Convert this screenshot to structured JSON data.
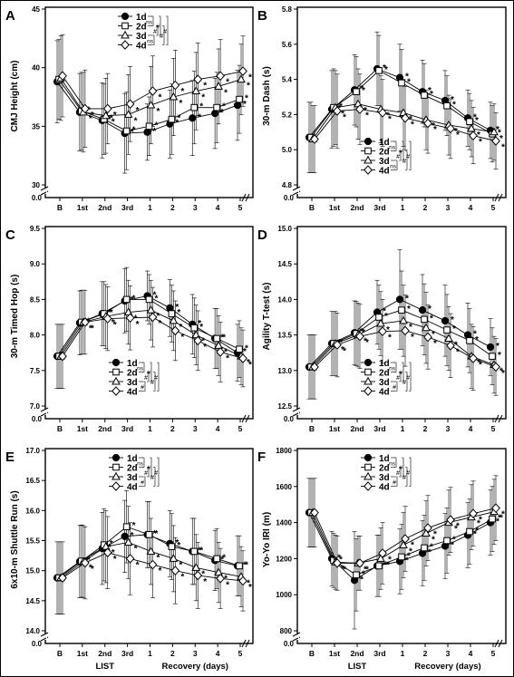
{
  "figure": {
    "x_group_left": "LIST",
    "x_group_right": "Recovery (days)",
    "series_styles": [
      {
        "name": "1d",
        "marker": "circle",
        "fill": "#000000"
      },
      {
        "name": "2d",
        "marker": "square",
        "fill": "#ffffff"
      },
      {
        "name": "3d",
        "marker": "triangle",
        "fill": "#ffffff"
      },
      {
        "name": "4d",
        "marker": "diamond",
        "fill": "#ffffff"
      }
    ],
    "colors": {
      "line": "#000000",
      "background": "#ffffff"
    }
  },
  "chart_data": [
    {
      "panel": "A",
      "type": "line",
      "ylabel": "CMJ Height (cm)",
      "ylim": [
        30,
        45
      ],
      "yticks": [
        "30",
        "35",
        "40",
        "45"
      ],
      "categories": [
        "B",
        "1st",
        "2nd",
        "3rd",
        "1",
        "2",
        "3",
        "4",
        "5"
      ],
      "series": [
        {
          "name": "1d",
          "values": [
            38.8,
            36.2,
            35.5,
            34.4,
            34.5,
            35.2,
            35.7,
            36.1,
            36.8
          ],
          "err": [
            3.5,
            3.3,
            3.2,
            3.4,
            2.4,
            2.9,
            3.2,
            3.0,
            3.0
          ]
        },
        {
          "name": "2d",
          "values": [
            39.0,
            36.3,
            35.6,
            34.6,
            35.0,
            35.6,
            36.6,
            36.6,
            37.3
          ],
          "err": [
            3.4,
            3.3,
            3.0,
            3.3,
            2.5,
            3.0,
            3.1,
            3.0,
            2.9
          ]
        },
        {
          "name": "3d",
          "values": [
            39.1,
            36.2,
            35.9,
            36.0,
            36.8,
            37.5,
            38.0,
            38.4,
            39.0
          ],
          "err": [
            3.6,
            3.4,
            3.2,
            3.4,
            3.3,
            3.3,
            3.3,
            3.2,
            3.0
          ]
        },
        {
          "name": "4d",
          "values": [
            39.3,
            36.5,
            36.5,
            36.9,
            38.0,
            38.5,
            39.0,
            39.3,
            39.7
          ],
          "err": [
            3.5,
            3.3,
            3.0,
            3.2,
            3.0,
            3.0,
            3.1,
            3.1,
            3.0
          ]
        }
      ],
      "legend": {
        "position": "top",
        "pairs": [
          "ns",
          "#",
          "#",
          "#",
          "#",
          "ns"
        ]
      }
    },
    {
      "panel": "B",
      "type": "line",
      "ylabel": "30-m Dash (s)",
      "ylim": [
        4.8,
        5.8
      ],
      "yticks": [
        "4.8",
        "5.0",
        "5.2",
        "5.4",
        "5.6",
        "5.8"
      ],
      "categories": [
        "B",
        "1st",
        "2nd",
        "3rd",
        "1",
        "2",
        "3",
        "4",
        "5"
      ],
      "series": [
        {
          "name": "1d",
          "values": [
            5.07,
            5.23,
            5.34,
            5.46,
            5.41,
            5.33,
            5.28,
            5.18,
            5.11
          ],
          "err": [
            0.2,
            0.22,
            0.2,
            0.21,
            0.19,
            0.18,
            0.17,
            0.16,
            0.16
          ]
        },
        {
          "name": "2d",
          "values": [
            5.07,
            5.24,
            5.33,
            5.45,
            5.38,
            5.31,
            5.25,
            5.16,
            5.09
          ],
          "err": [
            0.2,
            0.22,
            0.2,
            0.2,
            0.19,
            0.18,
            0.17,
            0.16,
            0.16
          ]
        },
        {
          "name": "3d",
          "values": [
            5.06,
            5.24,
            5.26,
            5.23,
            5.21,
            5.17,
            5.14,
            5.12,
            5.1
          ],
          "err": [
            0.19,
            0.21,
            0.2,
            0.19,
            0.19,
            0.17,
            0.17,
            0.16,
            0.16
          ]
        },
        {
          "name": "4d",
          "values": [
            5.06,
            5.22,
            5.23,
            5.21,
            5.18,
            5.15,
            5.12,
            5.08,
            5.05
          ],
          "err": [
            0.19,
            0.21,
            0.2,
            0.19,
            0.18,
            0.17,
            0.17,
            0.16,
            0.16
          ]
        }
      ],
      "legend": {
        "position": "bottom",
        "pairs": [
          "ns",
          "#",
          "#",
          "#",
          "#",
          "ns"
        ]
      }
    },
    {
      "panel": "C",
      "type": "line",
      "ylabel": "30-m Timed Hop (s)",
      "ylim": [
        7.0,
        9.5
      ],
      "yticks": [
        "7.0",
        "7.5",
        "8.0",
        "8.5",
        "9.0",
        "9.5"
      ],
      "categories": [
        "B",
        "1st",
        "2nd",
        "3rd",
        "1",
        "2",
        "3",
        "4",
        "5"
      ],
      "series": [
        {
          "name": "1d",
          "values": [
            7.7,
            8.17,
            8.3,
            8.48,
            8.55,
            8.38,
            8.15,
            7.95,
            7.75
          ],
          "err": [
            0.45,
            0.45,
            0.45,
            0.45,
            0.35,
            0.4,
            0.42,
            0.42,
            0.4
          ]
        },
        {
          "name": "2d",
          "values": [
            7.7,
            8.18,
            8.3,
            8.5,
            8.5,
            8.3,
            8.1,
            7.95,
            7.8
          ],
          "err": [
            0.45,
            0.45,
            0.45,
            0.45,
            0.35,
            0.4,
            0.42,
            0.42,
            0.4
          ]
        },
        {
          "name": "3d",
          "values": [
            7.7,
            8.18,
            8.26,
            8.32,
            8.35,
            8.2,
            8.0,
            7.85,
            7.7
          ],
          "err": [
            0.45,
            0.45,
            0.45,
            0.45,
            0.42,
            0.42,
            0.42,
            0.42,
            0.4
          ]
        },
        {
          "name": "4d",
          "values": [
            7.7,
            8.18,
            8.23,
            8.24,
            8.25,
            8.06,
            7.92,
            7.76,
            7.67
          ],
          "err": [
            0.45,
            0.45,
            0.45,
            0.45,
            0.42,
            0.42,
            0.42,
            0.42,
            0.4
          ]
        }
      ],
      "legend": {
        "position": "bottom",
        "pairs": [
          "ns",
          "#",
          "#",
          "#",
          "#",
          "#"
        ]
      }
    },
    {
      "panel": "D",
      "type": "line",
      "ylabel": "Agility T-test (s)",
      "ylim": [
        12.5,
        15.0
      ],
      "yticks": [
        "12.5",
        "13.0",
        "13.5",
        "14.0",
        "14.5",
        "15.0"
      ],
      "categories": [
        "B",
        "1st",
        "2nd",
        "3rd",
        "1",
        "2",
        "3",
        "4",
        "5"
      ],
      "series": [
        {
          "name": "1d",
          "values": [
            13.05,
            13.38,
            13.53,
            13.82,
            14.0,
            13.85,
            13.7,
            13.5,
            13.33
          ],
          "err": [
            0.45,
            0.45,
            0.45,
            0.45,
            0.7,
            0.5,
            0.5,
            0.45,
            0.4
          ]
        },
        {
          "name": "2d",
          "values": [
            13.05,
            13.38,
            13.52,
            13.75,
            13.85,
            13.72,
            13.57,
            13.42,
            13.2
          ],
          "err": [
            0.45,
            0.45,
            0.45,
            0.45,
            0.55,
            0.5,
            0.5,
            0.45,
            0.4
          ]
        },
        {
          "name": "3d",
          "values": [
            13.05,
            13.38,
            13.5,
            13.66,
            13.7,
            13.6,
            13.45,
            13.2,
            13.08
          ],
          "err": [
            0.45,
            0.45,
            0.45,
            0.45,
            0.5,
            0.5,
            0.45,
            0.45,
            0.4
          ]
        },
        {
          "name": "4d",
          "values": [
            13.05,
            13.36,
            13.48,
            13.55,
            13.56,
            13.47,
            13.35,
            13.17,
            13.05
          ],
          "err": [
            0.45,
            0.45,
            0.45,
            0.45,
            0.5,
            0.45,
            0.45,
            0.45,
            0.4
          ]
        }
      ],
      "legend": {
        "position": "bottom",
        "pairs": [
          "ns",
          "#",
          "#",
          "#",
          "#",
          "#"
        ]
      }
    },
    {
      "panel": "E",
      "type": "line",
      "ylabel": "6x10-m Shuttle Run (s)",
      "ylim": [
        14.0,
        17.0
      ],
      "yticks": [
        "14.0",
        "14.5",
        "15.0",
        "15.5",
        "16.0",
        "16.5",
        "17.0"
      ],
      "categories": [
        "B",
        "1st",
        "2nd",
        "3rd",
        "1",
        "2",
        "3",
        "4",
        "5"
      ],
      "series": [
        {
          "name": "1d",
          "values": [
            14.88,
            15.15,
            15.37,
            15.57,
            15.6,
            15.45,
            15.32,
            15.17,
            15.08
          ],
          "err": [
            0.6,
            0.6,
            0.6,
            0.6,
            0.55,
            0.55,
            0.55,
            0.5,
            0.5
          ]
        },
        {
          "name": "2d",
          "values": [
            14.88,
            15.16,
            15.43,
            15.73,
            15.6,
            15.4,
            15.32,
            15.2,
            15.08
          ],
          "err": [
            0.6,
            0.6,
            0.6,
            0.6,
            0.55,
            0.55,
            0.55,
            0.5,
            0.5
          ]
        },
        {
          "name": "3d",
          "values": [
            14.88,
            15.15,
            15.4,
            15.47,
            15.32,
            15.2,
            15.05,
            14.97,
            14.9
          ],
          "err": [
            0.6,
            0.6,
            0.6,
            0.6,
            0.55,
            0.55,
            0.55,
            0.5,
            0.5
          ]
        },
        {
          "name": "4d",
          "values": [
            14.88,
            15.13,
            15.3,
            15.2,
            15.1,
            15.0,
            14.92,
            14.87,
            14.83
          ],
          "err": [
            0.6,
            0.6,
            0.6,
            0.6,
            0.55,
            0.55,
            0.55,
            0.5,
            0.5
          ]
        }
      ],
      "legend": {
        "position": "top",
        "pairs": [
          "ns",
          "#",
          "#",
          "#",
          "#",
          "#"
        ]
      }
    },
    {
      "panel": "F",
      "type": "line",
      "ylabel": "Yo-Yo IRI (m)",
      "ylim": [
        800,
        1800
      ],
      "yticks": [
        "800",
        "1000",
        "1200",
        "1400",
        "1600",
        "1800"
      ],
      "categories": [
        "B",
        "1st",
        "2nd",
        "3rd",
        "1",
        "2",
        "3",
        "4",
        "5"
      ],
      "series": [
        {
          "name": "1d",
          "values": [
            1455,
            1200,
            1080,
            1160,
            1185,
            1230,
            1270,
            1330,
            1400
          ],
          "err": [
            190,
            150,
            270,
            170,
            180,
            180,
            180,
            180,
            180
          ]
        },
        {
          "name": "2d",
          "values": [
            1455,
            1190,
            1110,
            1160,
            1210,
            1260,
            1300,
            1350,
            1420
          ],
          "err": [
            190,
            150,
            200,
            170,
            180,
            180,
            180,
            180,
            180
          ]
        },
        {
          "name": "3d",
          "values": [
            1455,
            1180,
            1175,
            1200,
            1275,
            1340,
            1400,
            1430,
            1460
          ],
          "err": [
            190,
            150,
            150,
            170,
            180,
            180,
            180,
            180,
            180
          ]
        },
        {
          "name": "4d",
          "values": [
            1455,
            1175,
            1175,
            1230,
            1310,
            1370,
            1415,
            1450,
            1480
          ],
          "err": [
            190,
            150,
            150,
            170,
            180,
            180,
            180,
            180,
            180
          ]
        }
      ],
      "legend": {
        "position": "top",
        "pairs": [
          "ns",
          "#",
          "#",
          "#",
          "#",
          "#"
        ]
      }
    }
  ]
}
